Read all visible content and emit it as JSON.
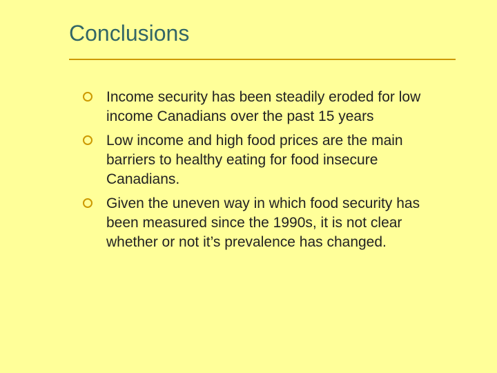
{
  "slide": {
    "background_color": "#ffff99",
    "title": "Conclusions",
    "title_color": "#336666",
    "title_fontsize": 32,
    "rule_color": "#cc9900",
    "bullet_marker_color": "#cc9900",
    "body_text_color": "#222222",
    "body_fontsize": 21,
    "bullets": [
      "Income security has been steadily eroded for low income Canadians over the past 15 years",
      "Low income and high food prices are the main barriers to healthy eating for food insecure Canadians.",
      "Given the uneven way in which food security has been measured since the 1990s, it is not clear whether or not it’s prevalence has changed."
    ]
  }
}
